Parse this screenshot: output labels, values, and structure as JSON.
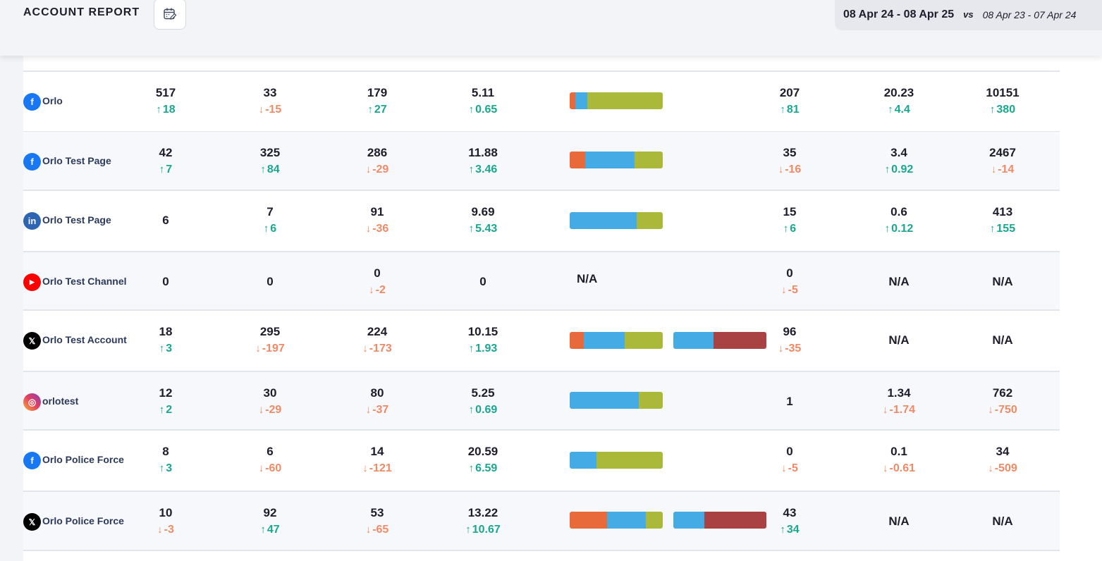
{
  "header": {
    "title": "ACCOUNT REPORT",
    "calendar_icon": "calendar-edit-icon",
    "date_range": "08 Apr 24 - 08 Apr 25",
    "vs_label": "vs",
    "compare_range": "08 Apr 23 - 07 Apr 24"
  },
  "colors": {
    "up": "#1aa78f",
    "down": "#ef8a66",
    "bar_orange": "#e8693a",
    "bar_blue": "#45abe4",
    "bar_olive": "#aab93a",
    "bar_red": "#a94343"
  },
  "rows": [
    {
      "network": "facebook",
      "icon": "facebook-icon",
      "account": "Orlo",
      "c1": {
        "value": "517",
        "change": "18",
        "dir": "up"
      },
      "c2": {
        "value": "33",
        "change": "-15",
        "dir": "down"
      },
      "c3": {
        "value": "179",
        "change": "27",
        "dir": "up"
      },
      "c4": {
        "value": "5.11",
        "change": "0.65",
        "dir": "up"
      },
      "bar1": [
        0.06,
        0.13,
        0.81
      ],
      "bar2": null,
      "c5": {
        "value": "207",
        "change": "81",
        "dir": "up"
      },
      "c6": {
        "value": "20.23",
        "change": "4.4",
        "dir": "up"
      },
      "c7": {
        "value": "10151",
        "change": "380",
        "dir": "up"
      }
    },
    {
      "network": "facebook",
      "icon": "facebook-icon",
      "account": "Orlo Test Page",
      "c1": {
        "value": "42",
        "change": "7",
        "dir": "up"
      },
      "c2": {
        "value": "325",
        "change": "84",
        "dir": "up"
      },
      "c3": {
        "value": "286",
        "change": "-29",
        "dir": "down"
      },
      "c4": {
        "value": "11.88",
        "change": "3.46",
        "dir": "up"
      },
      "bar1": [
        0.17,
        0.53,
        0.3
      ],
      "bar2": null,
      "c5": {
        "value": "35",
        "change": "-16",
        "dir": "down"
      },
      "c6": {
        "value": "3.4",
        "change": "0.92",
        "dir": "up"
      },
      "c7": {
        "value": "2467",
        "change": "-14",
        "dir": "down"
      }
    },
    {
      "network": "linkedin",
      "icon": "linkedin-icon",
      "account": "Orlo Test Page",
      "c1": {
        "value": "6",
        "change": "",
        "dir": ""
      },
      "c2": {
        "value": "7",
        "change": "6",
        "dir": "up"
      },
      "c3": {
        "value": "91",
        "change": "-36",
        "dir": "down"
      },
      "c4": {
        "value": "9.69",
        "change": "5.43",
        "dir": "up"
      },
      "bar1": [
        0,
        0.72,
        0.28
      ],
      "bar2": null,
      "c5": {
        "value": "15",
        "change": "6",
        "dir": "up"
      },
      "c6": {
        "value": "0.6",
        "change": "0.12",
        "dir": "up"
      },
      "c7": {
        "value": "413",
        "change": "155",
        "dir": "up"
      }
    },
    {
      "network": "youtube",
      "icon": "youtube-icon",
      "account": "Orlo Test Channel",
      "c1": {
        "value": "0",
        "change": "",
        "dir": ""
      },
      "c2": {
        "value": "0",
        "change": "",
        "dir": ""
      },
      "c3": {
        "value": "0",
        "change": "-2",
        "dir": "down"
      },
      "c4": {
        "value": "0",
        "change": "",
        "dir": ""
      },
      "bar1": null,
      "bar1_na": "N/A",
      "bar2": null,
      "c5": {
        "value": "0",
        "change": "-5",
        "dir": "down"
      },
      "c6": {
        "value": "N/A",
        "change": "",
        "dir": ""
      },
      "c7": {
        "value": "N/A",
        "change": "",
        "dir": ""
      }
    },
    {
      "network": "x",
      "icon": "x-icon",
      "account": "Orlo Test Account",
      "c1": {
        "value": "18",
        "change": "3",
        "dir": "up"
      },
      "c2": {
        "value": "295",
        "change": "-197",
        "dir": "down"
      },
      "c3": {
        "value": "224",
        "change": "-173",
        "dir": "down"
      },
      "c4": {
        "value": "10.15",
        "change": "1.93",
        "dir": "up"
      },
      "bar1": [
        0.15,
        0.44,
        0.41
      ],
      "bar2": [
        0.43,
        0.57
      ],
      "c5": {
        "value": "96",
        "change": "-35",
        "dir": "down"
      },
      "c6": {
        "value": "N/A",
        "change": "",
        "dir": ""
      },
      "c7": {
        "value": "N/A",
        "change": "",
        "dir": ""
      }
    },
    {
      "network": "instagram",
      "icon": "instagram-icon",
      "account": "orlotest",
      "c1": {
        "value": "12",
        "change": "2",
        "dir": "up"
      },
      "c2": {
        "value": "30",
        "change": "-29",
        "dir": "down"
      },
      "c3": {
        "value": "80",
        "change": "-37",
        "dir": "down"
      },
      "c4": {
        "value": "5.25",
        "change": "0.69",
        "dir": "up"
      },
      "bar1": [
        0,
        0.74,
        0.26
      ],
      "bar2": null,
      "c5": {
        "value": "1",
        "change": "",
        "dir": ""
      },
      "c6": {
        "value": "1.34",
        "change": "-1.74",
        "dir": "down"
      },
      "c7": {
        "value": "762",
        "change": "-750",
        "dir": "down"
      }
    },
    {
      "network": "facebook",
      "icon": "facebook-icon",
      "account": "Orlo Police Force",
      "c1": {
        "value": "8",
        "change": "3",
        "dir": "up"
      },
      "c2": {
        "value": "6",
        "change": "-60",
        "dir": "down"
      },
      "c3": {
        "value": "14",
        "change": "-121",
        "dir": "down"
      },
      "c4": {
        "value": "20.59",
        "change": "6.59",
        "dir": "up"
      },
      "bar1": [
        0,
        0.29,
        0.71
      ],
      "bar2": null,
      "c5": {
        "value": "0",
        "change": "-5",
        "dir": "down"
      },
      "c6": {
        "value": "0.1",
        "change": "-0.61",
        "dir": "down"
      },
      "c7": {
        "value": "34",
        "change": "-509",
        "dir": "down"
      }
    },
    {
      "network": "x",
      "icon": "x-icon",
      "account": "Orlo Police Force",
      "c1": {
        "value": "10",
        "change": "-3",
        "dir": "down"
      },
      "c2": {
        "value": "92",
        "change": "47",
        "dir": "up"
      },
      "c3": {
        "value": "53",
        "change": "-65",
        "dir": "down"
      },
      "c4": {
        "value": "13.22",
        "change": "10.67",
        "dir": "up"
      },
      "bar1": [
        0.4,
        0.42,
        0.18
      ],
      "bar2": [
        0.33,
        0.67
      ],
      "c5": {
        "value": "43",
        "change": "34",
        "dir": "up"
      },
      "c6": {
        "value": "N/A",
        "change": "",
        "dir": ""
      },
      "c7": {
        "value": "N/A",
        "change": "",
        "dir": ""
      }
    }
  ]
}
